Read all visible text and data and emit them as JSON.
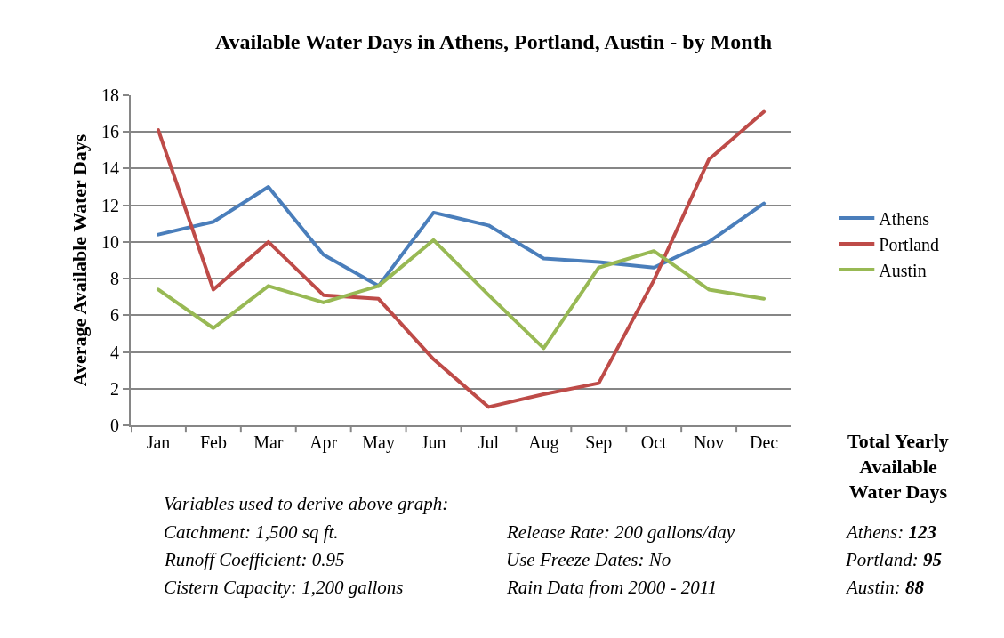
{
  "chart_data": {
    "type": "line",
    "title": "Available Water Days in Athens, Portland, Austin - by Month",
    "ylabel": "Average Available Water Days",
    "categories": [
      "Jan",
      "Feb",
      "Mar",
      "Apr",
      "May",
      "Jun",
      "Jul",
      "Aug",
      "Sep",
      "Oct",
      "Nov",
      "Dec"
    ],
    "series": [
      {
        "name": "Athens",
        "color": "#4a7ebb",
        "values": [
          10.4,
          11.1,
          13.0,
          9.3,
          7.6,
          11.6,
          10.9,
          9.1,
          8.9,
          8.6,
          10.0,
          12.1
        ]
      },
      {
        "name": "Portland",
        "color": "#be4b48",
        "values": [
          16.1,
          7.4,
          10.0,
          7.1,
          6.9,
          3.6,
          1.0,
          1.7,
          2.3,
          7.9,
          14.5,
          17.1
        ]
      },
      {
        "name": "Austin",
        "color": "#98b954",
        "values": [
          7.4,
          5.3,
          7.6,
          6.7,
          7.6,
          10.1,
          7.1,
          4.2,
          8.6,
          9.5,
          7.4,
          6.9
        ]
      }
    ],
    "ylim": [
      0,
      18
    ],
    "yticks": [
      0,
      2,
      4,
      6,
      8,
      10,
      12,
      14,
      16,
      18
    ],
    "grid": "y",
    "legend": "right",
    "marker": "none",
    "line_style": "solid",
    "annotations": [
      "Variables used to derive above graph:",
      "Catchment: 1,500 sq ft.",
      "Runoff Coefficient: 0.95",
      "Cistern Capacity: 1,200 gallons",
      "Release Rate: 200 gallons/day",
      "Use Freeze Dates: No",
      "Rain Data from 2000 - 2011",
      "Total Yearly\nAvailable\nWater Days",
      "Athens: 123",
      "Portland: 95",
      "Austin: 88"
    ]
  }
}
